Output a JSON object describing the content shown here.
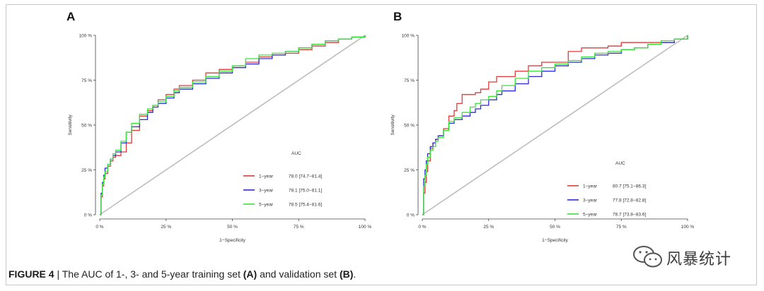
{
  "figure": {
    "caption_label": "FIGURE 4",
    "caption_sep": " | ",
    "caption_pre": "The AUC of 1-, 3- and 5-year training set ",
    "caption_a": "(A)",
    "caption_mid": " and validation set ",
    "caption_b": "(B)",
    "caption_end": "."
  },
  "watermark": {
    "text": "风暴统计",
    "icon": "wechat-icon"
  },
  "colors": {
    "diagonal": "#bdbdbd",
    "y1": "#e23a3a",
    "y3": "#2b2bdb",
    "y5": "#3be23b"
  },
  "chart_data": [
    {
      "panel": "A",
      "type": "line",
      "title": "",
      "xlabel": "1−Specificity",
      "ylabel": "Sensitivity",
      "xlim": [
        0,
        100
      ],
      "ylim": [
        0,
        100
      ],
      "x_ticks": [
        "0 %",
        "25 %",
        "50 %",
        "75 %",
        "100 %"
      ],
      "y_ticks": [
        "0 %",
        "25 %",
        "50 %",
        "75 %",
        "100 %"
      ],
      "legend_title": "AUC",
      "legend_position": "bottom-right",
      "series": [
        {
          "name": "1−year",
          "auc": "78.0 [74.7−81.4]",
          "color": "#e23a3a",
          "x": [
            0,
            0.5,
            1,
            1.5,
            2,
            3,
            4,
            5,
            6,
            8,
            10,
            12,
            15,
            18,
            20,
            22,
            25,
            28,
            30,
            35,
            40,
            45,
            50,
            55,
            60,
            65,
            70,
            75,
            80,
            85,
            90,
            95,
            100
          ],
          "y": [
            0,
            10,
            16,
            20,
            23,
            27,
            30,
            32,
            33,
            35,
            40,
            47,
            55,
            58,
            61,
            64,
            67,
            70,
            72,
            75,
            79,
            81,
            83,
            85,
            88,
            89,
            90,
            92,
            94,
            96,
            98,
            99,
            100
          ]
        },
        {
          "name": "3−year",
          "auc": "78.1 [75.0−81.1]",
          "color": "#2b2bdb",
          "x": [
            0,
            0.5,
            1,
            1.5,
            2,
            3,
            4,
            5,
            6,
            8,
            10,
            12,
            15,
            18,
            20,
            22,
            25,
            28,
            30,
            35,
            40,
            45,
            50,
            55,
            60,
            65,
            70,
            75,
            80,
            85,
            90,
            95,
            100
          ],
          "y": [
            0,
            12,
            18,
            22,
            26,
            28,
            31,
            33,
            35,
            40,
            46,
            49,
            53,
            57,
            60,
            62,
            65,
            68,
            70,
            73,
            76,
            79,
            82,
            84,
            87,
            89,
            91,
            93,
            95,
            97,
            98,
            99,
            100
          ]
        },
        {
          "name": "5−year",
          "auc": "78.5 [75.4−81.6]",
          "color": "#3be23b",
          "x": [
            0,
            0.5,
            1,
            1.5,
            2,
            3,
            4,
            5,
            6,
            8,
            10,
            12,
            15,
            18,
            20,
            22,
            25,
            28,
            30,
            35,
            40,
            45,
            50,
            55,
            60,
            65,
            70,
            75,
            80,
            85,
            90,
            95,
            100
          ],
          "y": [
            0,
            11,
            17,
            21,
            24,
            28,
            31,
            34,
            36,
            41,
            46,
            51,
            56,
            59,
            61,
            63,
            66,
            69,
            71,
            74,
            77,
            80,
            83,
            87,
            89,
            90,
            91,
            93,
            95,
            97,
            98,
            99,
            100
          ]
        }
      ]
    },
    {
      "panel": "B",
      "type": "line",
      "title": "",
      "xlabel": "1−Specificity",
      "ylabel": "Sensitivity",
      "xlim": [
        0,
        100
      ],
      "ylim": [
        0,
        100
      ],
      "x_ticks": [
        "0 %",
        "25 %",
        "50 %",
        "75 %",
        "100 %"
      ],
      "y_ticks": [
        "0 %",
        "25 %",
        "50 %",
        "75 %",
        "100 %"
      ],
      "legend_title": "AUC",
      "legend_position": "bottom-right",
      "series": [
        {
          "name": "1−year",
          "auc": "80.7 [75.1−86.3]",
          "color": "#e23a3a",
          "x": [
            0,
            0.5,
            1,
            1.5,
            2,
            3,
            4,
            5,
            6,
            8,
            10,
            12,
            13,
            15,
            18,
            20,
            22,
            25,
            28,
            30,
            35,
            40,
            45,
            50,
            55,
            60,
            65,
            70,
            75,
            80,
            85,
            90,
            95,
            100
          ],
          "y": [
            0,
            12,
            18,
            24,
            30,
            37,
            40,
            42,
            44,
            48,
            55,
            58,
            62,
            67,
            67,
            68,
            70,
            74,
            77,
            77,
            80,
            83,
            85,
            85,
            91,
            93,
            93,
            94,
            96,
            96,
            96,
            96,
            98,
            100
          ]
        },
        {
          "name": "3−year",
          "auc": "77.8 [72.8−82.8]",
          "color": "#2b2bdb",
          "x": [
            0,
            0.5,
            1,
            1.5,
            2,
            3,
            4,
            5,
            6,
            8,
            10,
            12,
            15,
            18,
            20,
            22,
            25,
            28,
            30,
            35,
            40,
            45,
            50,
            55,
            60,
            65,
            70,
            75,
            80,
            85,
            90,
            95,
            100
          ],
          "y": [
            0,
            20,
            25,
            30,
            34,
            38,
            40,
            42,
            44,
            47,
            51,
            53,
            55,
            57,
            59,
            61,
            64,
            67,
            69,
            73,
            77,
            80,
            83,
            85,
            87,
            89,
            90,
            92,
            93,
            95,
            96,
            98,
            100
          ]
        },
        {
          "name": "5−year",
          "auc": "78.7 [73.8−83.6]",
          "color": "#3be23b",
          "x": [
            0,
            0.5,
            1,
            1.5,
            2,
            3,
            4,
            5,
            6,
            8,
            10,
            12,
            15,
            18,
            20,
            22,
            25,
            28,
            30,
            35,
            40,
            45,
            50,
            55,
            60,
            65,
            70,
            75,
            80,
            85,
            90,
            95,
            100
          ],
          "y": [
            0,
            16,
            22,
            28,
            32,
            36,
            38,
            41,
            43,
            47,
            52,
            54,
            57,
            60,
            62,
            64,
            66,
            69,
            72,
            76,
            80,
            82,
            84,
            86,
            88,
            90,
            91,
            92,
            93,
            95,
            97,
            98,
            100
          ]
        }
      ]
    }
  ]
}
